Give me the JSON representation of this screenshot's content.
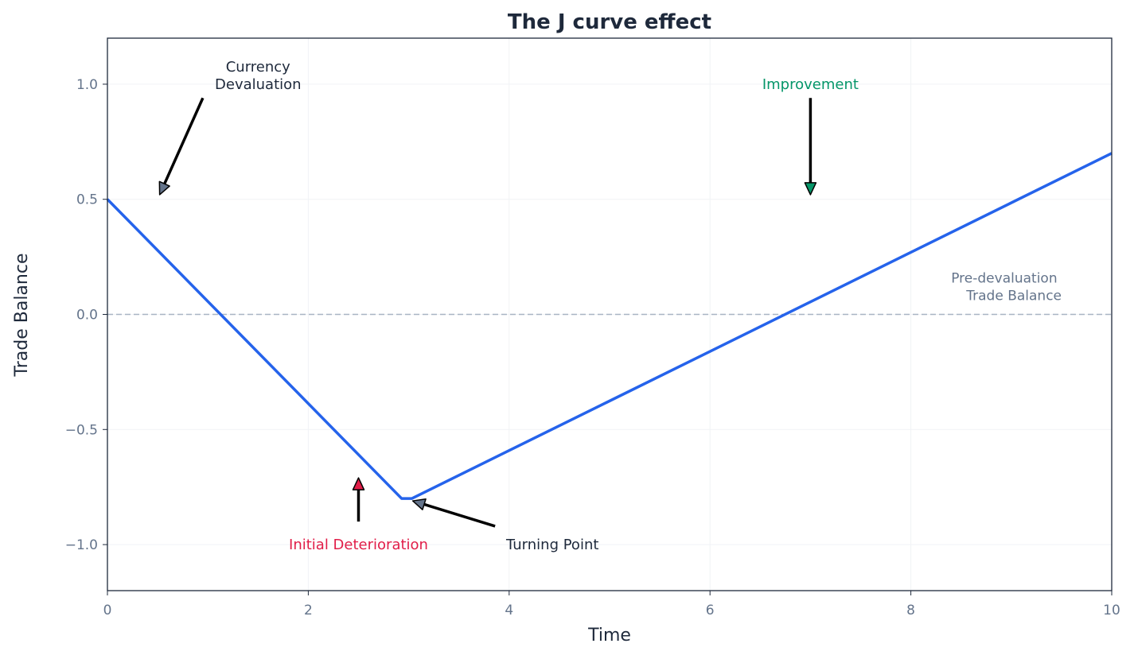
{
  "chart_data": {
    "type": "line",
    "title": "The J curve effect",
    "xlabel": "Time",
    "ylabel": "Trade Balance",
    "xlim": [
      0,
      10
    ],
    "ylim": [
      -1.2,
      1.2
    ],
    "x_ticks": [
      0,
      2,
      4,
      6,
      8,
      10
    ],
    "x_tick_labels": [
      "0",
      "2",
      "4",
      "6",
      "8",
      "10"
    ],
    "y_ticks": [
      1.0,
      0.5,
      0.0,
      -0.5,
      -1.0
    ],
    "y_tick_labels": [
      "1.0",
      "0.5",
      "0.0",
      "−0.5",
      "−1.0"
    ],
    "grid": true,
    "series": [
      {
        "x": [
          0,
          2.93,
          3.03,
          10
        ],
        "y": [
          0.5,
          -0.8,
          -0.8,
          0.7
        ],
        "color": "#2563eb"
      }
    ],
    "reference_line": {
      "y": 0,
      "style": "dashed",
      "color": "#a8b4c4",
      "label": [
        "Pre-devaluation",
        "Trade Balance"
      ]
    },
    "annotations": [
      {
        "text": [
          "Currency",
          "Devaluation"
        ],
        "xytext": [
          1.5,
          1.0
        ],
        "xy": [
          0.52,
          0.52
        ],
        "from": [
          0.95,
          0.94
        ],
        "color": "#1e293b",
        "head_color": "#64748b",
        "anchor": "middle"
      },
      {
        "text": [
          "Improvement"
        ],
        "xytext": [
          7.0,
          1.0
        ],
        "xy": [
          7.0,
          0.52
        ],
        "from": [
          7.0,
          0.94
        ],
        "color": "#059669",
        "head_color": "#059669",
        "anchor": "middle"
      },
      {
        "text": [
          "Initial Deterioration"
        ],
        "xytext": [
          2.5,
          -1.0
        ],
        "xy": [
          2.5,
          -0.71
        ],
        "from": [
          2.5,
          -0.9
        ],
        "color": "#e11d48",
        "head_color": "#e11d48",
        "anchor": "middle"
      },
      {
        "text": [
          "Turning Point"
        ],
        "xytext": [
          3.97,
          -1.0
        ],
        "xy": [
          3.04,
          -0.81
        ],
        "from": [
          3.86,
          -0.92
        ],
        "color": "#1e293b",
        "head_color": "#64748b",
        "anchor": "start"
      }
    ]
  }
}
